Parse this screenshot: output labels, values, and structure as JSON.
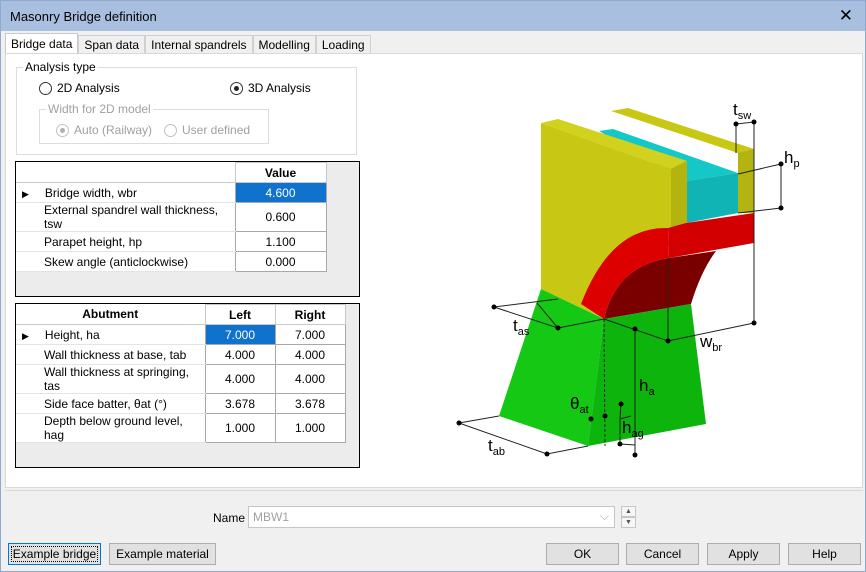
{
  "window": {
    "title": "Masonry Bridge definition",
    "close_icon": "close-icon"
  },
  "tabs": [
    "Bridge data",
    "Span data",
    "Internal spandrels",
    "Modelling",
    "Loading"
  ],
  "analysis": {
    "legend": "Analysis type",
    "opt2d": "2D Analysis",
    "opt3d": "3D Analysis",
    "selected": "3D Analysis",
    "width_legend": "Width for 2D model",
    "auto": "Auto (Railway)",
    "user": "User defined",
    "width_selected": "Auto (Railway)"
  },
  "bridge_table": {
    "header": "Value",
    "rows": [
      {
        "label": "Bridge width, wbr",
        "value": "4.600"
      },
      {
        "label": "External spandrel wall thickness, tsw",
        "value": "0.600"
      },
      {
        "label": "Parapet height, hp",
        "value": "1.100"
      },
      {
        "label": "Skew angle (anticlockwise)",
        "value": "0.000"
      }
    ]
  },
  "abutment_table": {
    "headers": [
      "Abutment",
      "Left",
      "Right"
    ],
    "rows": [
      {
        "label": "Height, ha",
        "left": "7.000",
        "right": "7.000"
      },
      {
        "label": "Wall thickness at base, tab",
        "left": "4.000",
        "right": "4.000"
      },
      {
        "label": "Wall thickness at springing, tas",
        "left": "4.000",
        "right": "4.000"
      },
      {
        "label": "Side face batter, θat (°)",
        "left": "3.678",
        "right": "3.678"
      },
      {
        "label": "Depth below ground level, hag",
        "left": "1.000",
        "right": "1.000"
      }
    ]
  },
  "diagram": {
    "labels": {
      "tsw": [
        "t",
        "sw"
      ],
      "hp": [
        "h",
        "p"
      ],
      "tas": [
        "t",
        "as"
      ],
      "wbr": [
        "w",
        "br"
      ],
      "ha": [
        "h",
        "a"
      ],
      "theta": [
        "θ",
        "at"
      ],
      "hag": [
        "h",
        "ag"
      ],
      "tab": [
        "t",
        "ab"
      ]
    },
    "colors": {
      "wall": "#c8c814",
      "fill": "#14c8c8",
      "arch": "#dc0000",
      "abutment": "#14c814"
    }
  },
  "name": {
    "label": "Name",
    "value": "MBW1"
  },
  "buttons": {
    "example_bridge": "Example bridge",
    "example_material": "Example material",
    "ok": "OK",
    "cancel": "Cancel",
    "apply": "Apply",
    "help": "Help"
  }
}
